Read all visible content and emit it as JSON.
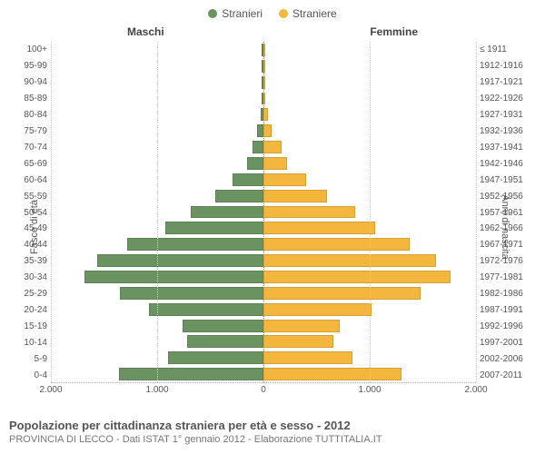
{
  "legend": {
    "male": {
      "label": "Stranieri",
      "color": "#6b9362"
    },
    "female": {
      "label": "Straniere",
      "color": "#f3b73e"
    }
  },
  "headers": {
    "male": "Maschi",
    "female": "Femmine"
  },
  "axis": {
    "left_label": "Fasce di età",
    "right_label": "Anni di nascita",
    "xmax": 2000,
    "xticks": [
      2000,
      1000,
      0,
      1000,
      2000
    ],
    "xtick_labels": [
      "2.000",
      "1.000",
      "0",
      "1.000",
      "2.000"
    ]
  },
  "colors": {
    "male_fill": "#6b9362",
    "female_fill": "#f3b73e",
    "grid": "#cccccc",
    "divider": "#888888",
    "background": "#ffffff",
    "text": "#555555"
  },
  "rows": [
    {
      "age": "100+",
      "birth": "≤ 1911",
      "m": 0,
      "f": 0
    },
    {
      "age": "95-99",
      "birth": "1912-1916",
      "m": 0,
      "f": 0
    },
    {
      "age": "90-94",
      "birth": "1917-1921",
      "m": 0,
      "f": 5
    },
    {
      "age": "85-89",
      "birth": "1922-1926",
      "m": 10,
      "f": 15
    },
    {
      "age": "80-84",
      "birth": "1927-1931",
      "m": 30,
      "f": 40
    },
    {
      "age": "75-79",
      "birth": "1932-1936",
      "m": 60,
      "f": 80
    },
    {
      "age": "70-74",
      "birth": "1937-1941",
      "m": 100,
      "f": 170
    },
    {
      "age": "65-69",
      "birth": "1942-1946",
      "m": 150,
      "f": 220
    },
    {
      "age": "60-64",
      "birth": "1947-1951",
      "m": 290,
      "f": 400
    },
    {
      "age": "55-59",
      "birth": "1952-1956",
      "m": 450,
      "f": 600
    },
    {
      "age": "50-54",
      "birth": "1957-1961",
      "m": 680,
      "f": 860
    },
    {
      "age": "45-49",
      "birth": "1962-1966",
      "m": 920,
      "f": 1050
    },
    {
      "age": "40-44",
      "birth": "1967-1971",
      "m": 1280,
      "f": 1380
    },
    {
      "age": "35-39",
      "birth": "1972-1976",
      "m": 1560,
      "f": 1620
    },
    {
      "age": "30-34",
      "birth": "1977-1981",
      "m": 1680,
      "f": 1760
    },
    {
      "age": "25-29",
      "birth": "1982-1986",
      "m": 1350,
      "f": 1480
    },
    {
      "age": "20-24",
      "birth": "1987-1991",
      "m": 1080,
      "f": 1020
    },
    {
      "age": "15-19",
      "birth": "1992-1996",
      "m": 760,
      "f": 720
    },
    {
      "age": "10-14",
      "birth": "1997-2001",
      "m": 720,
      "f": 660
    },
    {
      "age": "5-9",
      "birth": "2002-2006",
      "m": 900,
      "f": 840
    },
    {
      "age": "0-4",
      "birth": "2007-2011",
      "m": 1360,
      "f": 1300
    }
  ],
  "footer": {
    "title": "Popolazione per cittadinanza straniera per età e sesso - 2012",
    "subtitle": "PROVINCIA DI LECCO - Dati ISTAT 1° gennaio 2012 - Elaborazione TUTTITALIA.IT"
  },
  "typography": {
    "legend_fontsize": 12,
    "header_fontsize": 12,
    "tick_fontsize": 10,
    "axis_label_fontsize": 11,
    "title_fontsize": 13,
    "subtitle_fontsize": 11
  }
}
